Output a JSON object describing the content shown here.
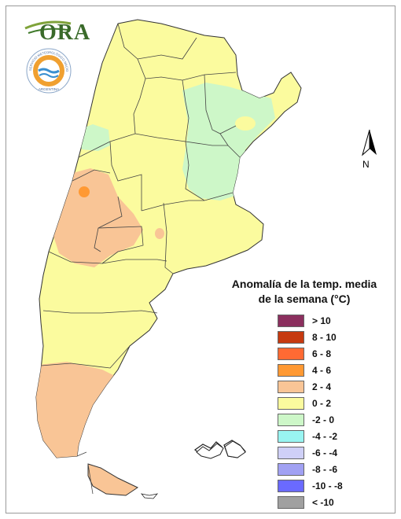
{
  "logos": {
    "ora_text": "ORA",
    "smn_ring_text": "SERVICIO METEOROLÓGICO NACIONAL",
    "smn_bottom_text": "ARGENTINA"
  },
  "compass": {
    "label": "N"
  },
  "legend": {
    "title_line1": "Anomalía de la temp. media",
    "title_line2": "de la semana (°C)",
    "items": [
      {
        "label": "> 10",
        "color": "#8b2f5e"
      },
      {
        "label": "8 - 10",
        "color": "#c63a10"
      },
      {
        "label": "6 - 8",
        "color": "#ff6a33"
      },
      {
        "label": "4 - 6",
        "color": "#ff9933"
      },
      {
        "label": "2 - 4",
        "color": "#f9c596"
      },
      {
        "label": "0 - 2",
        "color": "#fbfb9e"
      },
      {
        "label": "-2 - 0",
        "color": "#cdf7c8"
      },
      {
        "label": "-4 - -2",
        "color": "#99f5f2"
      },
      {
        "label": "-6 - -4",
        "color": "#cfd0f7"
      },
      {
        "label": "-8 - -6",
        "color": "#a1a1f3"
      },
      {
        "label": "-10 - -8",
        "color": "#6a6aff"
      },
      {
        "label": "< -10",
        "color": "#a0a0a0"
      }
    ]
  },
  "map_colors": {
    "base": "#fbfb9e",
    "warm": "#f9c596",
    "hot": "#ff9933",
    "cool": "#cdf7c8",
    "border": "#333333"
  }
}
